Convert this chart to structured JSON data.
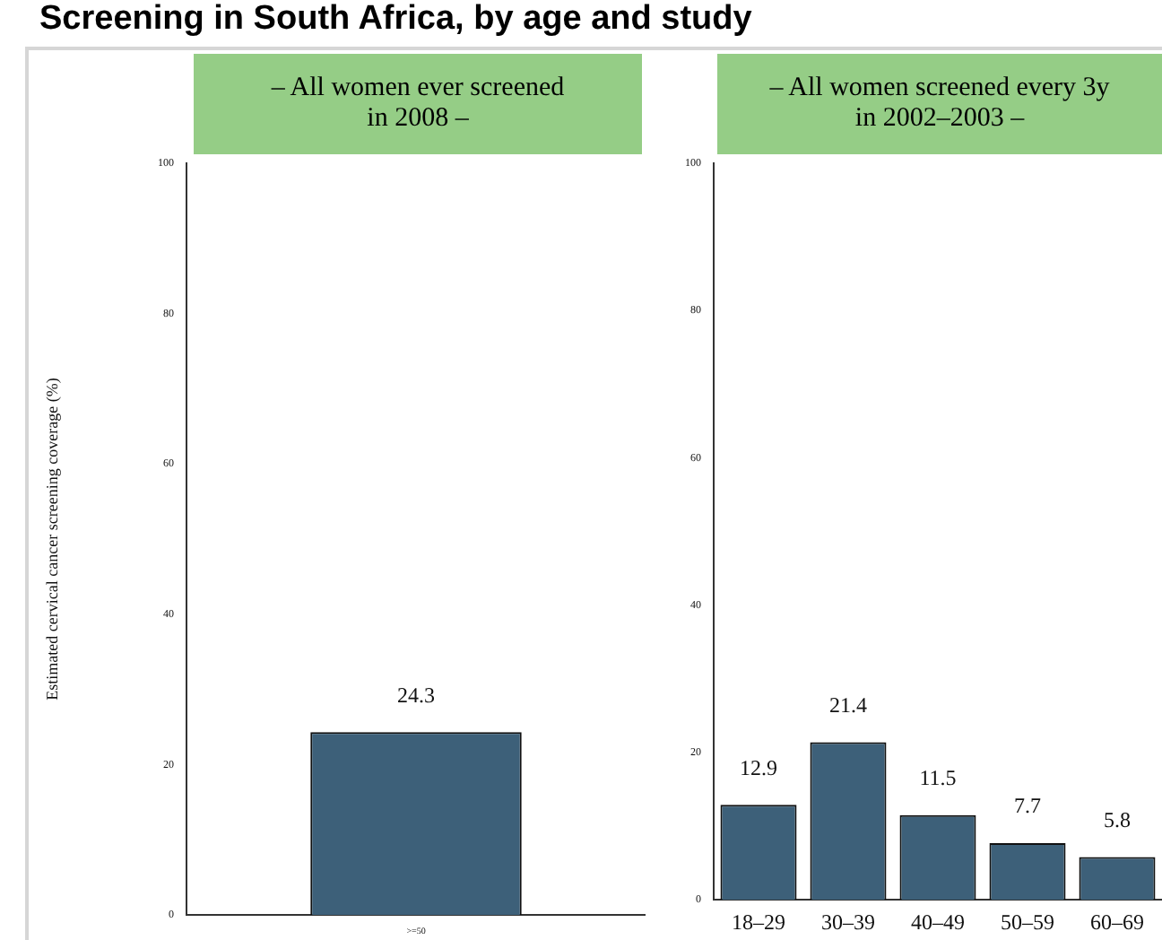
{
  "chart_data": [
    {
      "type": "bar",
      "title": "Screening in South Africa, by age and study",
      "subtitle": "– All women ever screened\nin 2008 –",
      "ylabel": "Estimated cervical cancer screening coverage (%)",
      "categories": [
        ">=50"
      ],
      "series": [
        {
          "color": "#3d6079",
          "values": [
            24.3
          ]
        }
      ],
      "ylim": [
        0,
        100
      ],
      "yticks": [
        0,
        20,
        40,
        60,
        80,
        100
      ],
      "grid": false,
      "legend": false,
      "data_labels": true
    },
    {
      "type": "bar",
      "subtitle": "– All women screened every 3y\nin 2002–2003 –",
      "categories": [
        "18–29",
        "30–39",
        "40–49",
        "50–59",
        "60–69"
      ],
      "series": [
        {
          "color": "#3d6079",
          "values": [
            12.9,
            21.4,
            11.5,
            7.7,
            5.8
          ]
        }
      ],
      "ylim": [
        0,
        100
      ],
      "yticks": [
        0,
        20,
        40,
        60,
        80,
        100
      ],
      "grid": false,
      "legend": false,
      "data_labels": true
    }
  ]
}
